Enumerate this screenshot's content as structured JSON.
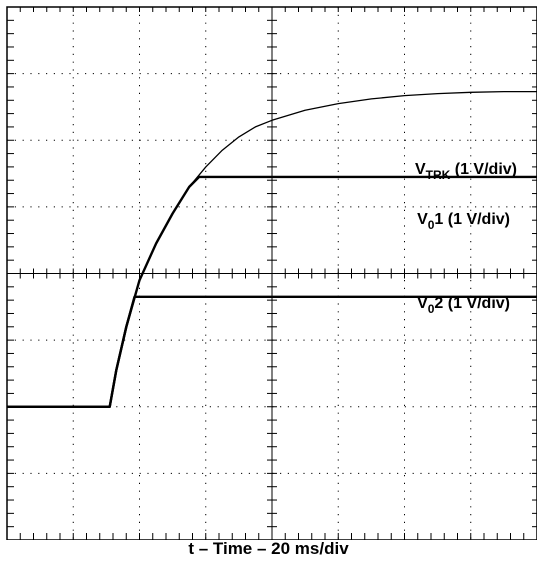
{
  "chart_data": {
    "type": "line",
    "title": "",
    "xlabel": "t – Time – 20 ms/div",
    "ylabel": "",
    "x_unit": "ms",
    "x_per_div": 20,
    "x_divisions": 8,
    "y_divisions": 8,
    "xlim": [
      0,
      160
    ],
    "grid": true,
    "series": [
      {
        "name": "V_TRK (1 V/div)",
        "label_main": "V",
        "label_sub": "TRK",
        "label_rest": " (1 V/div)",
        "x": [
          0,
          31,
          33,
          36,
          40,
          45,
          50,
          55,
          60,
          65,
          70,
          75,
          80,
          90,
          100,
          110,
          120,
          130,
          140,
          150,
          160
        ],
        "y": [
          2.0,
          2.0,
          2.55,
          3.2,
          3.9,
          4.45,
          4.9,
          5.3,
          5.6,
          5.85,
          6.05,
          6.2,
          6.3,
          6.45,
          6.55,
          6.62,
          6.67,
          6.7,
          6.72,
          6.73,
          6.73
        ]
      },
      {
        "name": "V01 (1 V/div)",
        "label_main": "V",
        "label_sub": "0",
        "label_rest": "1 (1 V/div)",
        "x": [
          0,
          31,
          33,
          36,
          40,
          45,
          50,
          55,
          58,
          160
        ],
        "y": [
          2.0,
          2.0,
          2.55,
          3.2,
          3.9,
          4.45,
          4.9,
          5.3,
          5.45,
          5.45
        ]
      },
      {
        "name": "V02 (1 V/div)",
        "label_main": "V",
        "label_sub": "0",
        "label_rest": "2 (1 V/div)",
        "x": [
          0,
          31,
          33,
          36,
          38.5,
          160
        ],
        "y": [
          2.0,
          2.0,
          2.55,
          3.2,
          3.65,
          3.65
        ]
      }
    ]
  }
}
